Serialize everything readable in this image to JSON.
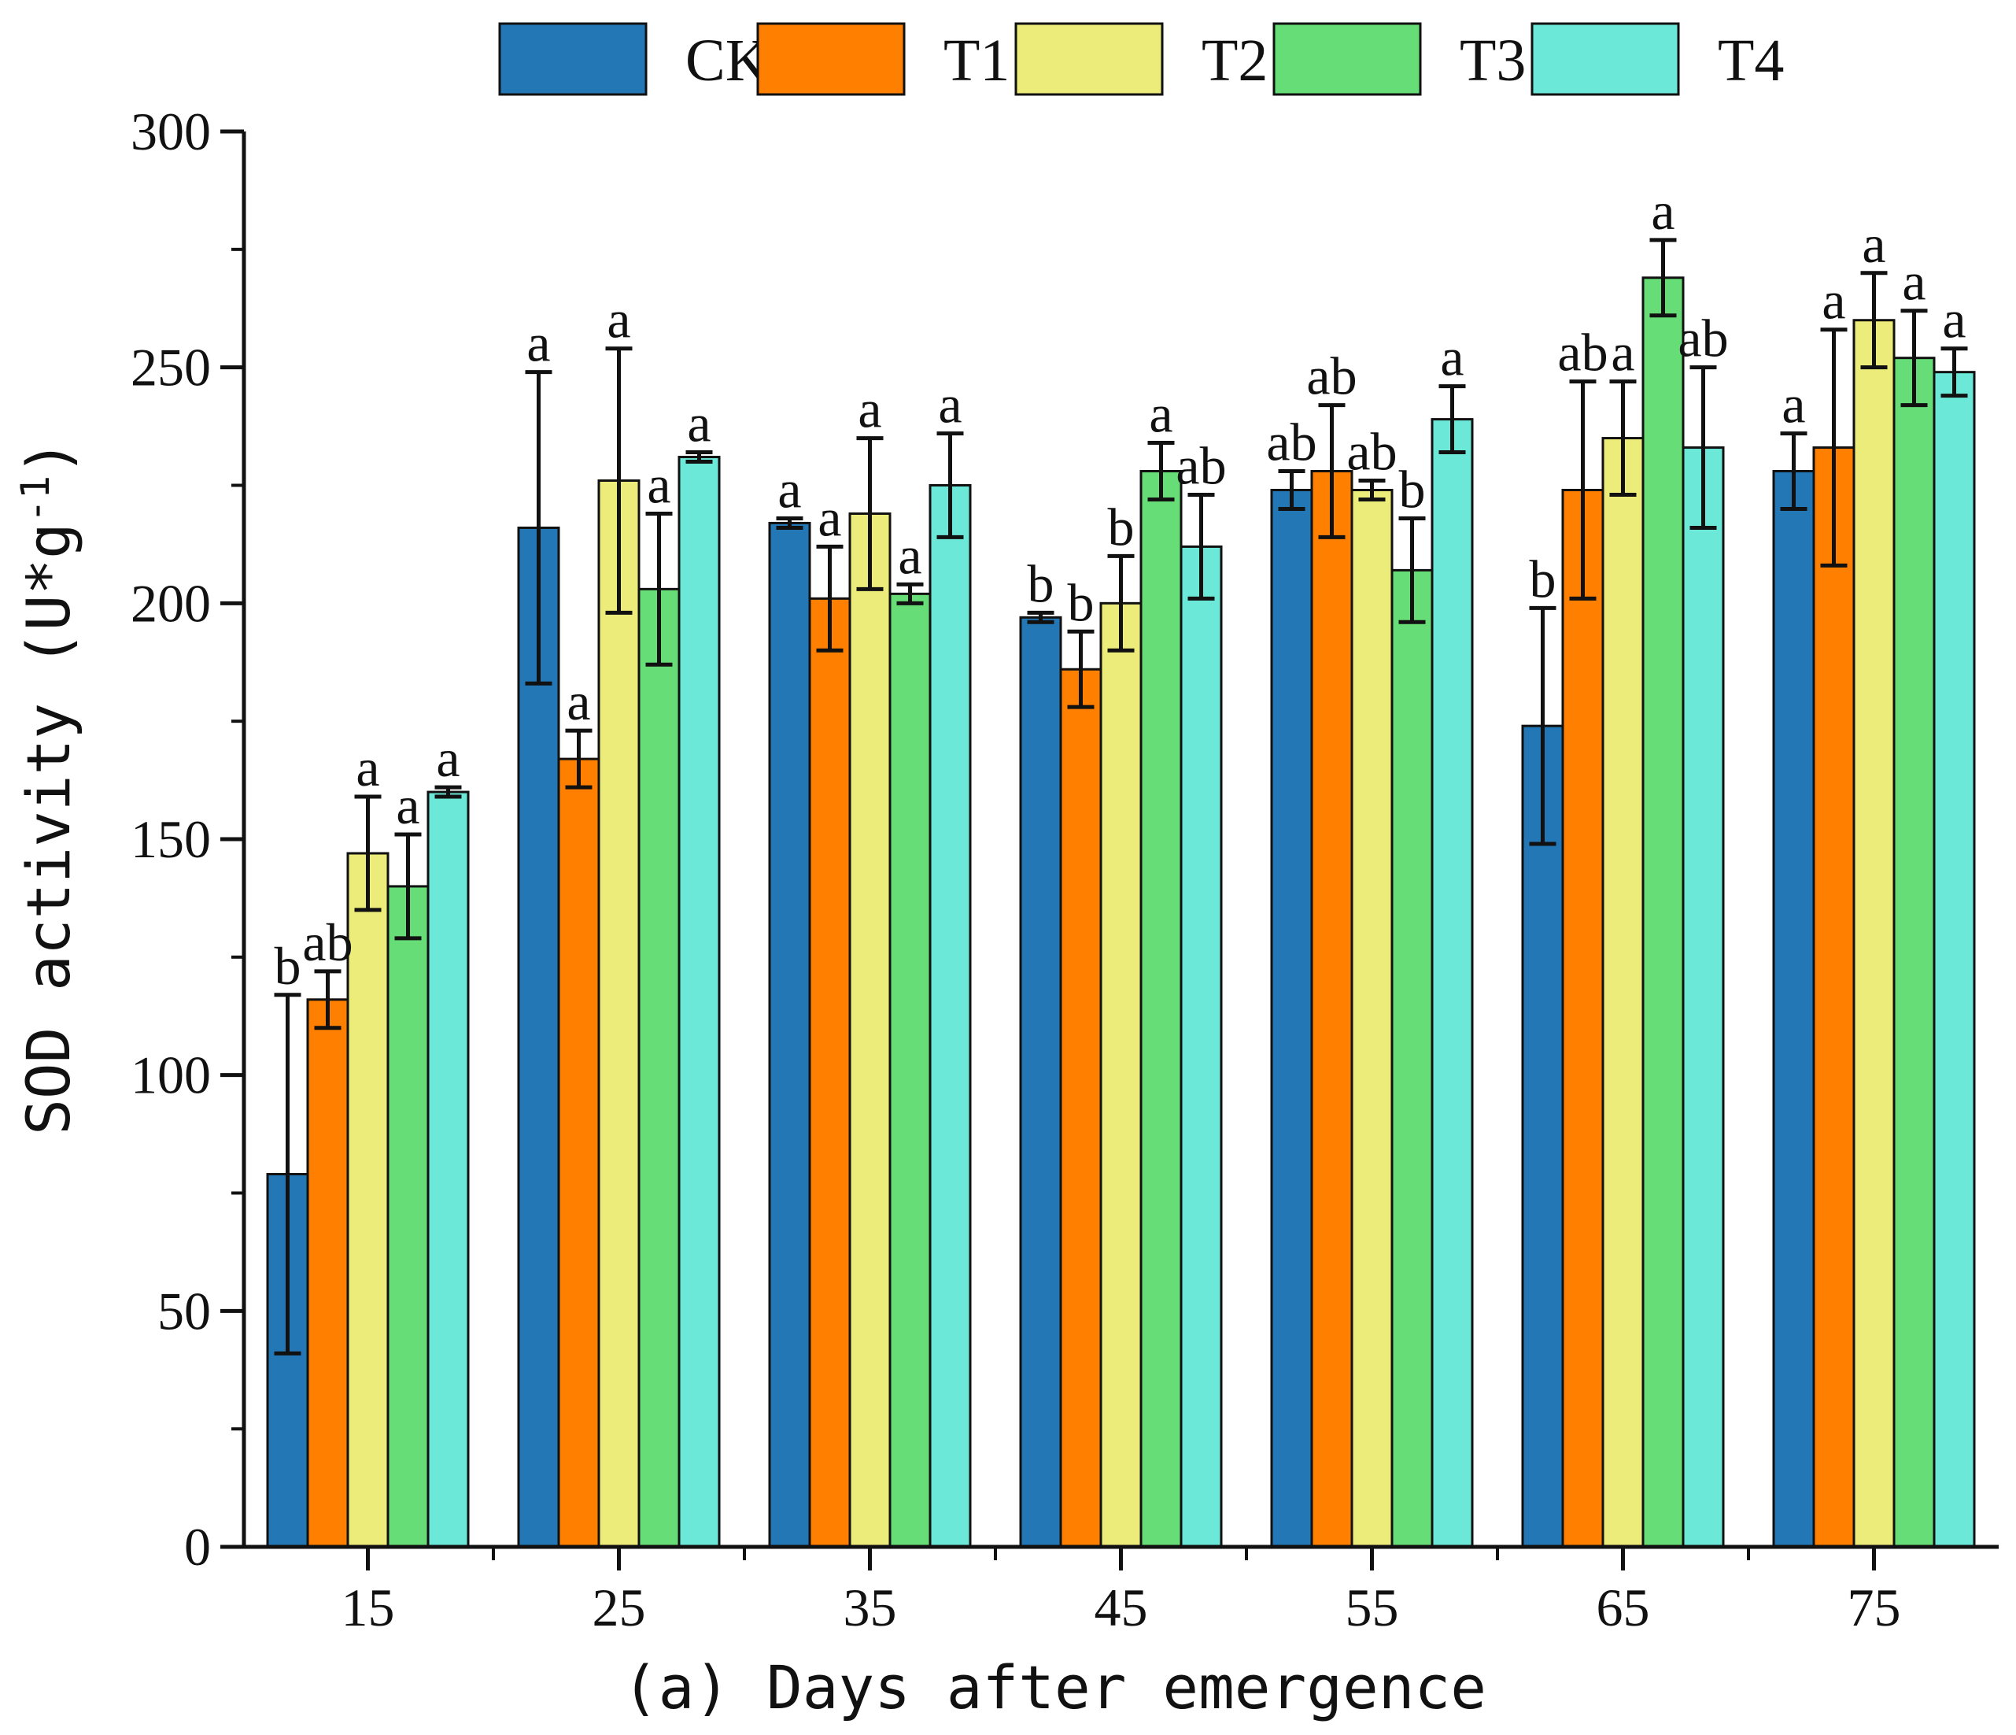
{
  "chart_data": {
    "type": "bar",
    "title": "",
    "xlabel": "(a) Days after emergence",
    "ylabel": "SOD activity (U*g",
    "ylabel_sup": "-1",
    "ylabel_close": ")",
    "ylim": [
      0,
      300
    ],
    "y_ticks": [
      0,
      50,
      100,
      150,
      200,
      250,
      300
    ],
    "y_tick_labels": [
      "0",
      "50",
      "100",
      "150",
      "200",
      "250",
      "300"
    ],
    "categories": [
      "15",
      "25",
      "35",
      "45",
      "55",
      "65",
      "75"
    ],
    "legend_position": "top",
    "series": [
      {
        "name": "CK",
        "color": "#2277b4",
        "values": [
          79,
          216,
          217,
          197,
          224,
          174,
          228
        ],
        "errors": [
          38,
          33,
          1,
          1,
          4,
          25,
          8
        ],
        "labels": [
          "b",
          "a",
          "a",
          "b",
          "ab",
          "b",
          "a"
        ]
      },
      {
        "name": "T1",
        "color": "#ff7f00",
        "values": [
          116,
          167,
          201,
          186,
          228,
          224,
          233
        ],
        "errors": [
          6,
          6,
          11,
          8,
          14,
          23,
          25
        ],
        "labels": [
          "ab",
          "a",
          "a",
          "b",
          "ab",
          "ab",
          "a"
        ]
      },
      {
        "name": "T2",
        "color": "#ecec7a",
        "values": [
          147,
          226,
          219,
          200,
          224,
          235,
          260
        ],
        "errors": [
          12,
          28,
          16,
          10,
          2,
          12,
          10
        ],
        "labels": [
          "a",
          "a",
          "a",
          "b",
          "ab",
          "a",
          "a"
        ]
      },
      {
        "name": "T3",
        "color": "#66dd77",
        "values": [
          140,
          203,
          202,
          228,
          207,
          269,
          252
        ],
        "errors": [
          11,
          16,
          2,
          6,
          11,
          8,
          10
        ],
        "labels": [
          "a",
          "a",
          "a",
          "a",
          "b",
          "a",
          "a"
        ]
      },
      {
        "name": "T4",
        "color": "#6ce8d8",
        "values": [
          160,
          231,
          225,
          212,
          239,
          233,
          249
        ],
        "errors": [
          1,
          1,
          11,
          11,
          7,
          17,
          5
        ],
        "labels": [
          "a",
          "a",
          "a",
          "ab",
          "a",
          "ab",
          "a"
        ]
      }
    ]
  }
}
